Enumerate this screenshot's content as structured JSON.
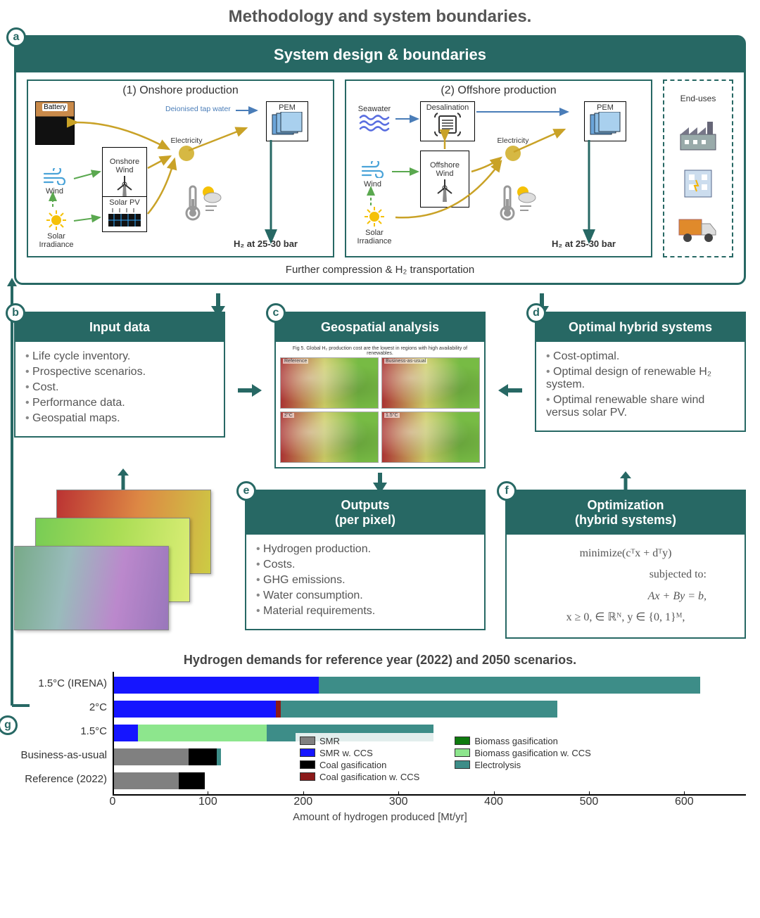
{
  "title": "Methodology and system boundaries.",
  "colors": {
    "teal": "#276864",
    "teal_fill": "#3d8d88"
  },
  "panelA": {
    "badge": "a",
    "header": "System design & boundaries",
    "onshore": {
      "title": "(1) Onshore production",
      "battery": "Battery",
      "wind": "Wind",
      "solarIrr": "Solar\nIrradiance",
      "onshoreWind": "Onshore\nWind",
      "solarPV": "Solar PV",
      "electricity": "Electricity",
      "water": "Deionised tap water",
      "pem": "PEM",
      "h2": "H₂ at 25-30 bar"
    },
    "offshore": {
      "title": "(2) Offshore production",
      "seawater": "Seawater",
      "wind": "Wind",
      "solarIrr": "Solar\nIrradiance",
      "desal": "Desalination",
      "offshoreWind": "Offshore\nWind",
      "electricity": "Electricity",
      "pem": "PEM",
      "h2": "H₂ at 25-30 bar"
    },
    "enduses_label": "End-uses",
    "footer": "Further compression & H₂ transportation"
  },
  "panelB": {
    "badge": "b",
    "header": "Input data",
    "items": [
      "Life cycle inventory.",
      "Prospective scenarios.",
      "Cost.",
      "Performance data.",
      "Geospatial maps."
    ]
  },
  "panelC": {
    "badge": "c",
    "header": "Geospatial analysis",
    "caption": "Fig 5. Global H₂ production cost are the lowest in regions with high availability of renewables.",
    "maps": [
      "Reference",
      "Business-as-usual",
      "2°C",
      "1.5°C"
    ]
  },
  "panelD": {
    "badge": "d",
    "header": "Optimal hybrid systems",
    "items": [
      "Cost-optimal.",
      "Optimal design of renewable H₂ system.",
      "Optimal renewable share wind versus solar PV."
    ]
  },
  "panelE": {
    "badge": "e",
    "header": "Outputs\n(per pixel)",
    "items": [
      "Hydrogen production.",
      "Costs.",
      "GHG emissions.",
      "Water consumption.",
      "Material requirements."
    ]
  },
  "panelF": {
    "badge": "f",
    "header": "Optimization\n(hybrid systems)",
    "eq1": "minimize(cᵀx + dᵀy)",
    "eq2": "subjected to:",
    "eq3": "Ax + By = b,",
    "eq4": "x ≥ 0, ∈ ℝᴺ, y ∈ {0, 1}ᴹ,"
  },
  "chart": {
    "badge": "g",
    "title": "Hydrogen demands for reference year (2022) and 2050 scenarios.",
    "xlabel": "Amount of hydrogen produced [Mt/yr]",
    "xmax": 650,
    "xticks": [
      0,
      100,
      200,
      300,
      400,
      500,
      600
    ],
    "categories": [
      "1.5°C (IRENA)",
      "2°C",
      "1.5°C",
      "Business-as-usual",
      "Reference (2022)"
    ],
    "legend": [
      {
        "label": "SMR",
        "color": "#808080"
      },
      {
        "label": "SMR w. CCS",
        "color": "#1515ff"
      },
      {
        "label": "Coal gasification",
        "color": "#000000"
      },
      {
        "label": "Coal gasification w. CCS",
        "color": "#8b1a1a"
      },
      {
        "label": "Biomass gasification",
        "color": "#0e7a0e"
      },
      {
        "label": "Biomass gasification w. CCS",
        "color": "#8de68d"
      },
      {
        "label": "Electrolysis",
        "color": "#3d8d88"
      }
    ],
    "series": [
      {
        "label": "1.5°C (IRENA)",
        "segments": [
          {
            "c": "#1515ff",
            "v": 215
          },
          {
            "c": "#3d8d88",
            "v": 400
          }
        ]
      },
      {
        "label": "2°C",
        "segments": [
          {
            "c": "#1515ff",
            "v": 170
          },
          {
            "c": "#8b1a1a",
            "v": 5
          },
          {
            "c": "#3d8d88",
            "v": 290
          }
        ]
      },
      {
        "label": "1.5°C",
        "segments": [
          {
            "c": "#1515ff",
            "v": 25
          },
          {
            "c": "#8de68d",
            "v": 135
          },
          {
            "c": "#3d8d88",
            "v": 175
          }
        ]
      },
      {
        "label": "Business-as-usual",
        "segments": [
          {
            "c": "#808080",
            "v": 78
          },
          {
            "c": "#000000",
            "v": 30
          },
          {
            "c": "#3d8d88",
            "v": 4
          }
        ]
      },
      {
        "label": "Reference (2022)",
        "segments": [
          {
            "c": "#808080",
            "v": 68
          },
          {
            "c": "#000000",
            "v": 27
          }
        ]
      }
    ]
  }
}
